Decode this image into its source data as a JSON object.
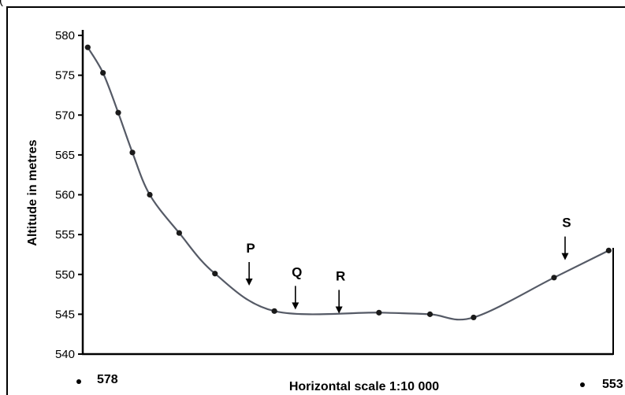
{
  "top_fragment": "(",
  "chart_data": {
    "type": "line",
    "ylabel": "Altitude in metres",
    "xlabel": "Horizontal scale 1:10 000",
    "ylim": [
      540,
      580
    ],
    "xlim": [
      0,
      100
    ],
    "y_ticks": [
      580,
      575,
      570,
      565,
      560,
      555,
      550,
      545,
      540
    ],
    "grid": false,
    "legend": "none",
    "line_color": "#555a66",
    "point_color": "#1a1a1a",
    "series": [
      {
        "x": [
          0.5,
          3.4,
          6.3,
          9.0,
          12.3,
          17.9,
          24.7,
          36.0,
          55.9,
          65.6,
          73.9,
          89.2,
          99.6
        ],
        "values": [
          578.5,
          575.3,
          570.3,
          565.3,
          560.0,
          555.2,
          550.1,
          545.4,
          545.2,
          545.0,
          544.6,
          549.6,
          553.0
        ]
      }
    ],
    "annotations": [
      {
        "label": "P",
        "x": 31.2,
        "y": 548.0
      },
      {
        "label": "Q",
        "x": 40.0,
        "y": 545.0
      },
      {
        "label": "R",
        "x": 48.3,
        "y": 544.5
      },
      {
        "label": "S",
        "x": 91.3,
        "y": 551.2
      }
    ],
    "endpoints": {
      "left_label": "578",
      "right_label": "553"
    }
  }
}
